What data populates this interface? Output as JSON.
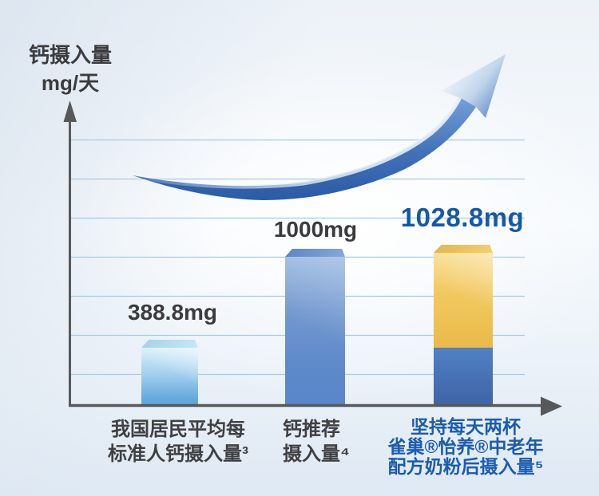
{
  "colors": {
    "accent_blue_text": "#1558aa",
    "brand_blue_label": "#1b5cad",
    "dark_text": "#3b3c3e",
    "axis_gray": "#57585a",
    "gridline_blue": "#a6cbe3",
    "bar_light_blue": "#7fc0e8",
    "bar_steel_blue": "#6190cc",
    "bar_gold": "#eebb4c",
    "swoosh_blue": "#3a6cb5"
  },
  "chart_data": {
    "type": "bar",
    "title": "",
    "y_axis_title_lines": [
      "钙摄入量",
      "mg/天"
    ],
    "ylabel": "钙摄入量 mg/天",
    "xlabel": "",
    "ylim": [
      0,
      1100
    ],
    "y_tick_labels": [],
    "grid": true,
    "gridline_count": 7,
    "legend": "none",
    "annotations": [
      {
        "name": "growth-trend-arrow",
        "meaning": "upward curved swoosh arrow indicating rising calcium intake"
      }
    ],
    "categories": [
      "我国居民平均每标准人钙摄入量³",
      "钙推荐摄入量⁴",
      "坚持每天两杯雀巢®怡养®中老年配方奶粉后摄入量⁵"
    ],
    "bars": [
      {
        "value_label": "388.8mg",
        "total_mg": 388.8,
        "label_lines": [
          "我国居民平均每",
          "标准人钙摄入量³"
        ],
        "segments": [
          {
            "mg": 388.8,
            "color_name": "light-blue"
          }
        ]
      },
      {
        "value_label": "1000mg",
        "total_mg": 1000,
        "label_lines": [
          "钙推荐",
          "摄入量⁴"
        ],
        "segments": [
          {
            "mg": 1000,
            "color_name": "steel-blue"
          }
        ]
      },
      {
        "value_label": "1028.8mg",
        "total_mg": 1028.8,
        "label_lines": [
          "坚持每天两杯",
          "雀巢®怡养®中老年",
          "配方奶粉后摄入量⁵"
        ],
        "segments": [
          {
            "mg": 388.8,
            "color_name": "steel-blue-dark"
          },
          {
            "mg": 640.0,
            "color_name": "gold"
          }
        ]
      }
    ]
  }
}
